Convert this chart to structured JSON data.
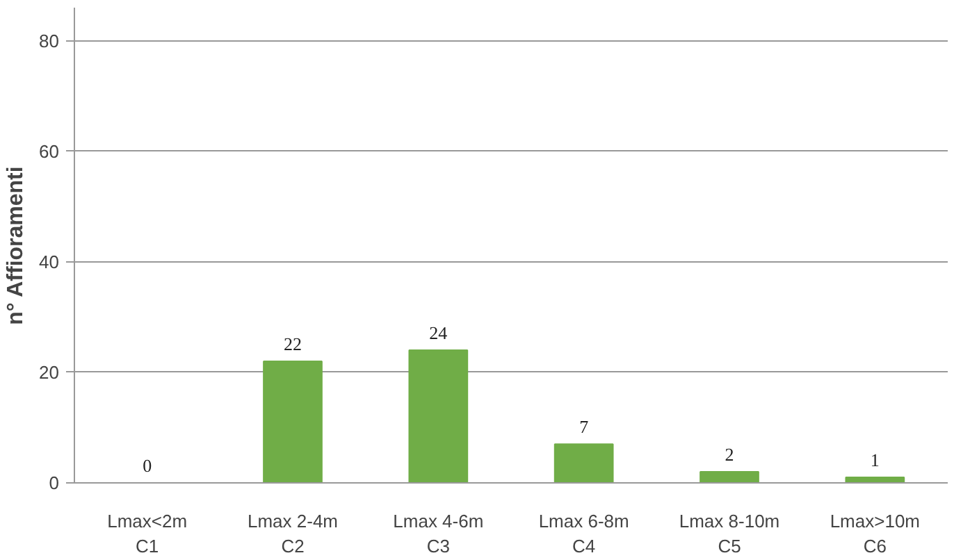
{
  "chart_data": {
    "type": "bar",
    "ylabel": "n° Affioramenti",
    "categories": [
      "Lmax<2m\nC1",
      "Lmax 2-4m\nC2",
      "Lmax 4-6m\nC3",
      "Lmax 6-8m\nC4",
      "Lmax 8-10m\nC5",
      "Lmax>10m\nC6"
    ],
    "values": [
      0,
      22,
      24,
      7,
      2,
      1
    ],
    "color": "#70ad47",
    "ylim": [
      0,
      86
    ],
    "yticks": [
      0,
      20,
      40,
      60,
      80
    ],
    "grid": "y",
    "data_labels": true
  }
}
